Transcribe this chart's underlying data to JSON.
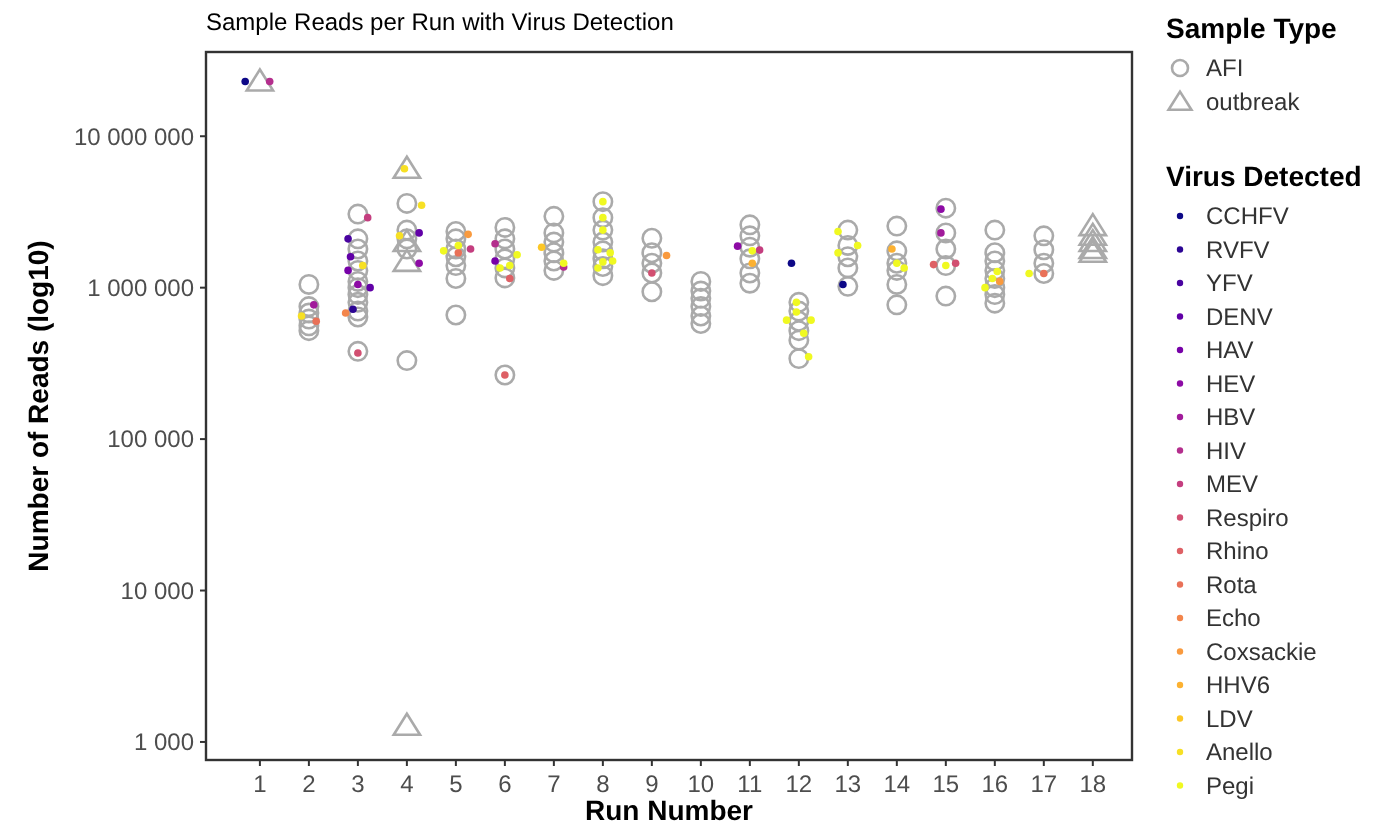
{
  "chart_data": {
    "type": "scatter",
    "title": "Sample Reads per Run with Virus Detection",
    "xlabel": "Run Number",
    "ylabel": "Number of Reads (log10)",
    "legend_title": [
      "Sample Type",
      "Virus Detected"
    ],
    "legend": "right",
    "log": "y",
    "marker": "circle",
    "xlim": [
      -0.1,
      18.8
    ],
    "xticks": [
      1,
      2,
      3,
      4,
      5,
      6,
      7,
      8,
      9,
      10,
      11,
      12,
      13,
      14,
      15,
      16,
      17,
      18
    ],
    "ylim": [
      760,
      36000000
    ],
    "yticks": [
      {
        "value": 1000,
        "label": "1 000"
      },
      {
        "value": 10000,
        "label": "10 000"
      },
      {
        "value": 100000,
        "label": "100 000"
      },
      {
        "value": 1000000,
        "label": "1 000 000"
      },
      {
        "value": 10000000,
        "label": "10 000 000"
      }
    ],
    "series": [
      {
        "name": "AFI",
        "color": "#aaaaaa",
        "marker": "circle",
        "x": [
          2,
          2,
          2,
          2,
          2,
          2,
          3,
          3,
          3,
          3,
          3,
          3,
          3,
          3,
          3,
          3,
          3,
          3,
          4,
          4,
          4,
          4,
          4,
          5,
          5,
          5,
          5,
          5,
          5,
          5,
          6,
          6,
          6,
          6,
          6,
          6,
          6,
          7,
          7,
          7,
          7,
          7,
          7,
          8,
          8,
          8,
          8,
          8,
          8,
          8,
          8,
          9,
          9,
          9,
          9,
          9,
          10,
          10,
          10,
          10,
          10,
          10,
          11,
          11,
          11,
          11,
          11,
          11,
          12,
          12,
          12,
          12,
          12,
          12,
          13,
          13,
          13,
          13,
          13,
          14,
          14,
          14,
          14,
          14,
          14,
          15,
          15,
          15,
          15,
          15,
          16,
          16,
          16,
          16,
          16,
          16,
          16,
          16,
          17,
          17,
          17,
          17
        ],
        "values": [
          1050000,
          750000,
          680000,
          620000,
          560000,
          520000,
          3060000,
          2100000,
          1800000,
          1500000,
          1300000,
          1100000,
          1000000,
          900000,
          800000,
          700000,
          640000,
          380000,
          3600000,
          2400000,
          2100000,
          1800000,
          330000,
          2350000,
          2100000,
          1800000,
          1600000,
          1400000,
          1150000,
          660000,
          2500000,
          2100000,
          1800000,
          1550000,
          1350000,
          1160000,
          265000,
          2960000,
          2300000,
          2000000,
          1700000,
          1500000,
          1300000,
          3700000,
          2900000,
          2400000,
          2000000,
          1750000,
          1550000,
          1380000,
          1200000,
          2120000,
          1700000,
          1450000,
          1250000,
          940000,
          1100000,
          950000,
          850000,
          750000,
          650000,
          580000,
          2600000,
          2200000,
          1850000,
          1550000,
          1250000,
          1070000,
          800000,
          700000,
          600000,
          520000,
          450000,
          340000,
          2400000,
          1900000,
          1600000,
          1350000,
          1020000,
          2550000,
          1750000,
          1450000,
          1300000,
          1050000,
          770000,
          3350000,
          2300000,
          1800000,
          1400000,
          880000,
          2400000,
          1700000,
          1500000,
          1300000,
          1150000,
          1000000,
          900000,
          790000,
          2200000,
          1780000,
          1450000,
          1240000
        ]
      },
      {
        "name": "outbreak",
        "color": "#aaaaaa",
        "marker": "triangle",
        "x": [
          1,
          4,
          4,
          4,
          4,
          18,
          18,
          18,
          18,
          18
        ],
        "values": [
          23000000,
          6100000,
          2000000,
          1480000,
          1280,
          2550000,
          2200000,
          2000000,
          1800000,
          1700000
        ]
      },
      {
        "name": "CCHFV",
        "color": "#0d0887",
        "x": [
          0.7,
          11.85,
          12.9
        ],
        "values": [
          23000000,
          1450000,
          1050000
        ]
      },
      {
        "name": "RVFV",
        "color": "#2c0594",
        "x": [
          2.9
        ],
        "values": [
          720000
        ]
      },
      {
        "name": "YFV",
        "color": "#4903a0",
        "x": [
          2.8
        ],
        "values": [
          2100000
        ]
      },
      {
        "name": "DENV",
        "color": "#6100a7",
        "x": [
          2.85,
          3.25,
          4.25
        ],
        "values": [
          1600000,
          1000000,
          2300000
        ]
      },
      {
        "name": "HAV",
        "color": "#7701a8",
        "x": [
          2.8,
          5.8
        ],
        "values": [
          1300000,
          1500000
        ]
      },
      {
        "name": "HEV",
        "color": "#8d0ba5",
        "x": [
          3.0,
          4.25,
          14.9,
          10.75
        ],
        "values": [
          1050000,
          1450000,
          3300000,
          1880000
        ]
      },
      {
        "name": "HBV",
        "color": "#a11b9b",
        "x": [
          2.1,
          14.9
        ],
        "values": [
          770000,
          2300000
        ]
      },
      {
        "name": "HIV",
        "color": "#b42e8d",
        "x": [
          1.2,
          5.8,
          7.2
        ],
        "values": [
          23000000,
          1950000,
          1370000
        ]
      },
      {
        "name": "MEV",
        "color": "#c43e7f",
        "x": [
          3.2,
          5.3,
          11.2
        ],
        "values": [
          2900000,
          1800000,
          1770000
        ]
      },
      {
        "name": "Respiro",
        "color": "#d24f71",
        "x": [
          3.0,
          15.2,
          9.0
        ],
        "values": [
          370000,
          1450000,
          1250000
        ]
      },
      {
        "name": "Rhino",
        "color": "#de6065",
        "x": [
          6.0,
          6.1,
          14.75
        ],
        "values": [
          265000,
          1150000,
          1420000
        ]
      },
      {
        "name": "Rota",
        "color": "#e97158",
        "x": [
          5.05,
          2.15,
          17.0
        ],
        "values": [
          1700000,
          600000,
          1240000
        ]
      },
      {
        "name": "Echo",
        "color": "#f3854b",
        "x": [
          2.75
        ],
        "values": [
          680000
        ]
      },
      {
        "name": "Coxsackie",
        "color": "#f99a3e",
        "x": [
          5.25,
          9.3,
          16.1
        ],
        "values": [
          2250000,
          1630000,
          1100000
        ]
      },
      {
        "name": "HHV6",
        "color": "#fcb131",
        "x": [
          11.05,
          13.9
        ],
        "values": [
          1450000,
          1800000
        ]
      },
      {
        "name": "LDV",
        "color": "#fcc726",
        "x": [
          6.75
        ],
        "values": [
          1850000
        ]
      },
      {
        "name": "Anello",
        "color": "#f7e024",
        "x": [
          1.85,
          3.1,
          3.85,
          3.95,
          4.3
        ],
        "values": [
          650000,
          1400000,
          2200000,
          6100000,
          3500000
        ]
      },
      {
        "name": "Pegi",
        "color": "#f0f921",
        "x": [
          5.05,
          4.75,
          6.25,
          6.1,
          5.9,
          7.2,
          8.0,
          8.0,
          8.0,
          7.9,
          8.15,
          8.0,
          8.2,
          7.9,
          11.05,
          11.95,
          11.95,
          11.75,
          12.25,
          12.1,
          12.2,
          12.8,
          13.2,
          12.8,
          14.0,
          14.15,
          15.0,
          16.05,
          15.8,
          15.95,
          16.7
        ],
        "values": [
          1900000,
          1750000,
          1650000,
          1400000,
          1350000,
          1450000,
          3700000,
          2900000,
          2400000,
          1780000,
          1700000,
          1480000,
          1500000,
          1350000,
          1750000,
          800000,
          690000,
          610000,
          610000,
          500000,
          350000,
          2350000,
          1900000,
          1700000,
          1450000,
          1350000,
          1400000,
          1280000,
          1000000,
          1150000,
          1240000
        ]
      }
    ]
  }
}
